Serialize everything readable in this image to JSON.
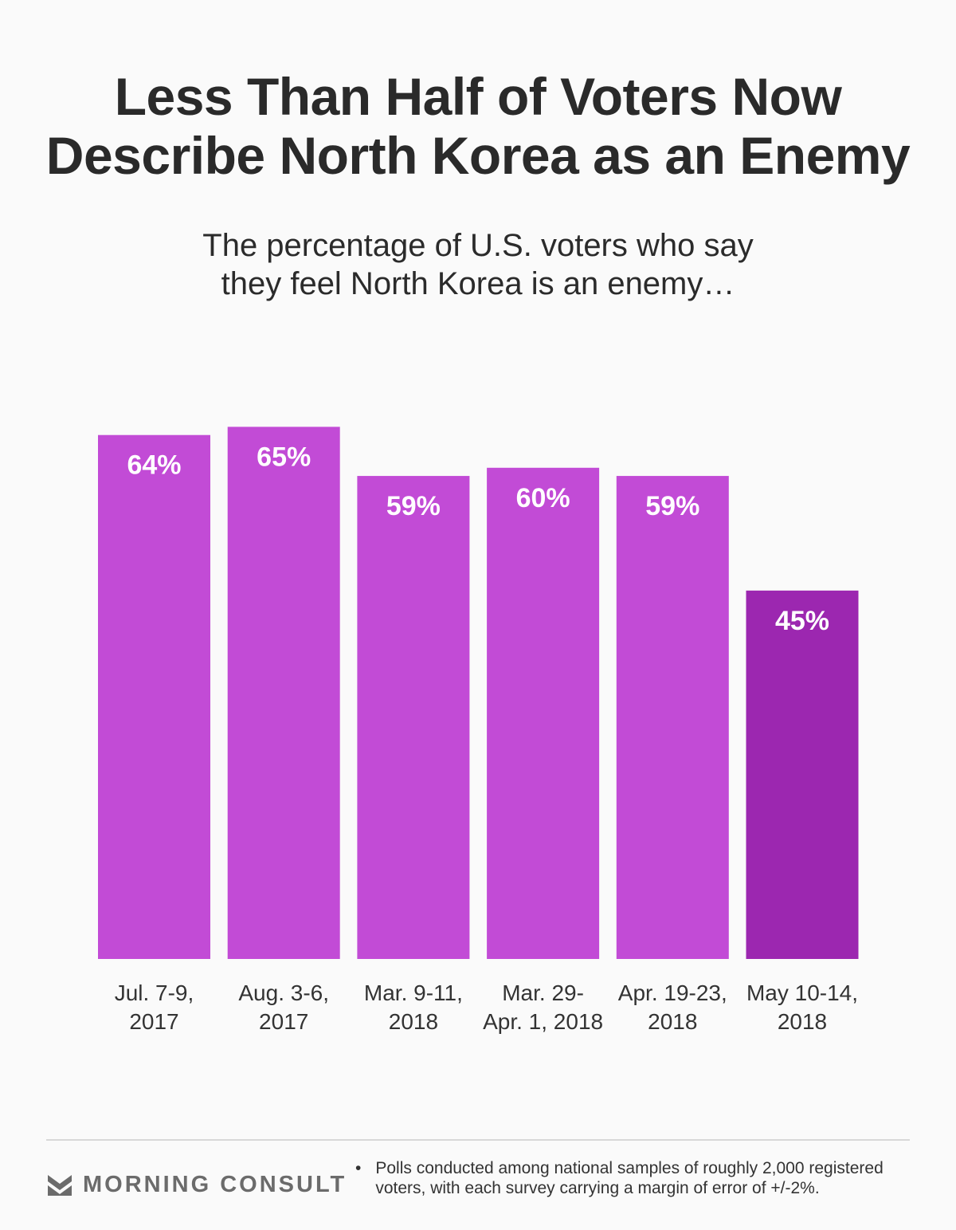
{
  "chart_data": {
    "type": "bar",
    "title": "Less Than Half of Voters Now Describe North Korea as an Enemy",
    "subtitle_lines": [
      "The percentage of U.S. voters who say",
      "they feel North Korea is an enemy…"
    ],
    "categories": [
      [
        "Jul. 7-9,",
        "2017"
      ],
      [
        "Aug. 3-6,",
        "2017"
      ],
      [
        "Mar. 9-11,",
        "2018"
      ],
      [
        "Mar. 29-",
        "Apr. 1, 2018"
      ],
      [
        "Apr. 19-23,",
        "2018"
      ],
      [
        "May 10-14,",
        "2018"
      ]
    ],
    "values": [
      64,
      65,
      59,
      60,
      59,
      45
    ],
    "data_labels": [
      "64%",
      "65%",
      "59%",
      "60%",
      "59%",
      "45%"
    ],
    "highlight_index": 5,
    "colors": {
      "default": "#c24bd6",
      "highlight": "#9c27b0"
    },
    "ylim": [
      0,
      100
    ],
    "xlabel": "",
    "ylabel": "",
    "grid": false
  },
  "title_lines": [
    "Less Than Half of Voters Now",
    "Describe North Korea as an Enemy"
  ],
  "footer": {
    "logo": "MORNING CONSULT",
    "bullet": "•",
    "note_lines": [
      "Polls conducted among national samples of roughly 2,000 registered",
      "voters, with each survey carrying a margin of error of +/-2%."
    ]
  }
}
